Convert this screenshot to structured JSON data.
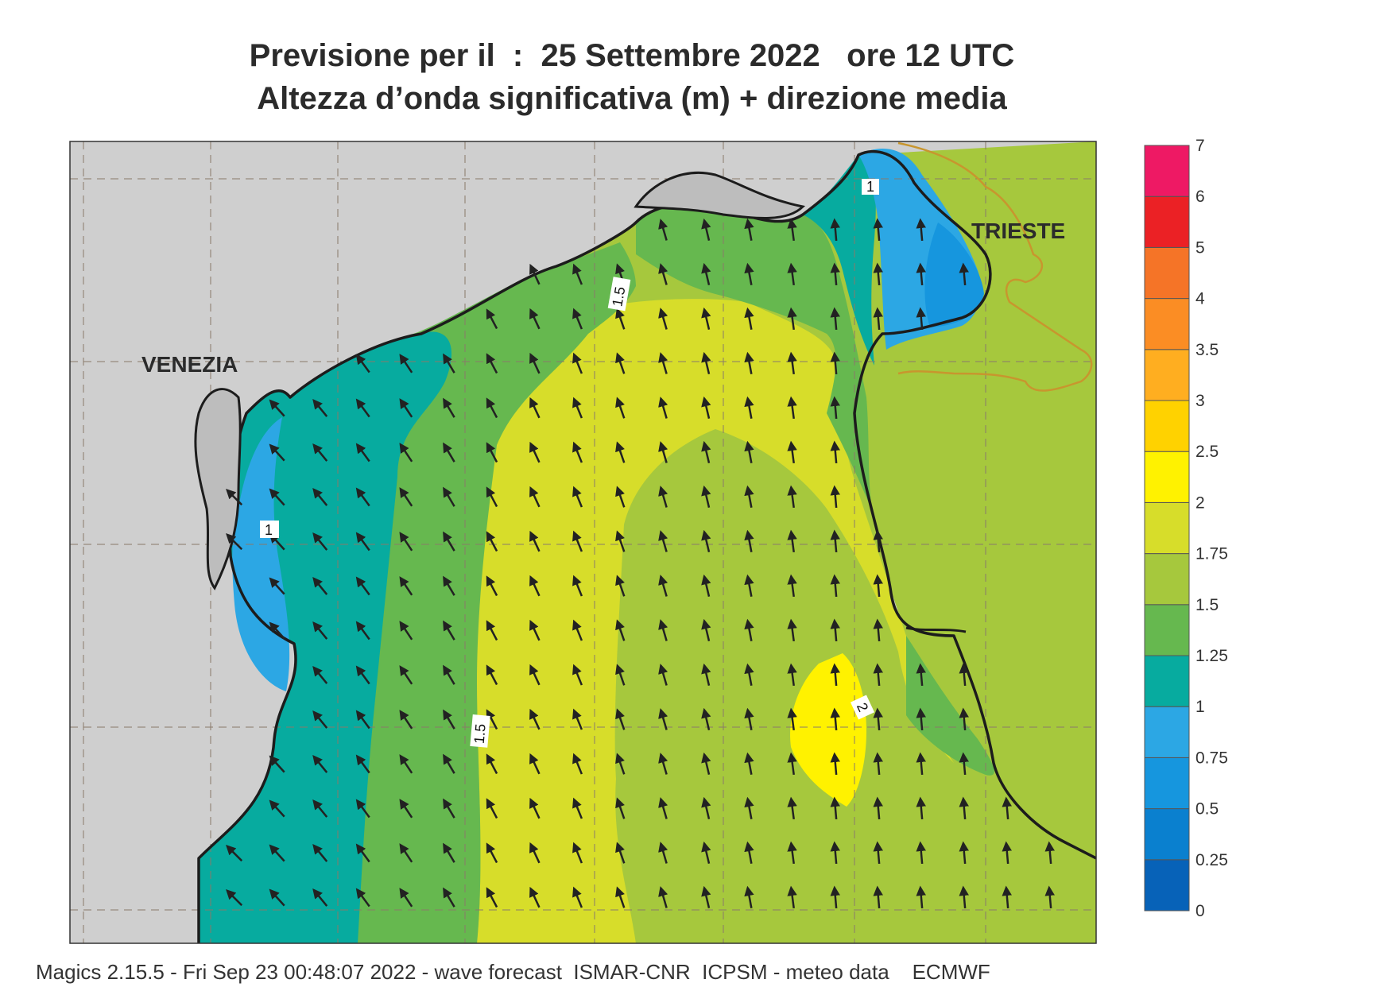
{
  "title": {
    "line1": "Previsione per il  :  25 Settembre 2022   ore 12 UTC",
    "line2": "Altezza d’onda significativa (m) + direzione media"
  },
  "cities": {
    "venezia": "VENEZIA",
    "trieste": "TRIESTE"
  },
  "contour_labels": {
    "c1": "1",
    "c15a": "1.5",
    "c15b": "1.5",
    "c2": "2"
  },
  "footer": "Magics 2.15.5 - Fri Sep 23 00:48:07 2022 - wave forecast  ISMAR-CNR  ICPSM - meteo data    ECMWF",
  "colors": {
    "land": "#cfcfcf",
    "coast": "#1c1c1c",
    "border": "#c8962e",
    "arrow": "#222222"
  },
  "legend": {
    "levels": [
      "0",
      "0.25",
      "0.5",
      "0.75",
      "1",
      "1.25",
      "1.5",
      "1.75",
      "2",
      "2.5",
      "3",
      "3.5",
      "4",
      "5",
      "6",
      "7"
    ],
    "colors": [
      "#0762b8",
      "#0a80cf",
      "#1696de",
      "#2ca7e4",
      "#07ab9f",
      "#66b84f",
      "#a6c83d",
      "#d7dd2a",
      "#fff200",
      "#ffd200",
      "#ffae20",
      "#fb8d24",
      "#f57427",
      "#eb2125",
      "#ee1964"
    ]
  },
  "wave_direction": "arrows pointing north to north-west"
}
